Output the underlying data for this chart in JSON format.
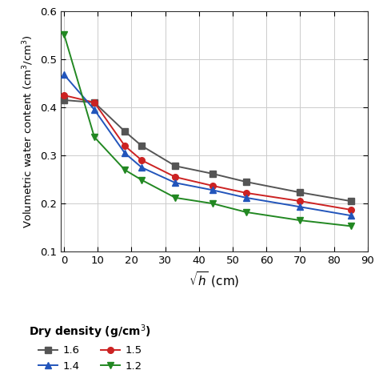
{
  "series": {
    "1.6": {
      "x": [
        0,
        9,
        18,
        23,
        33,
        44,
        54,
        70,
        85
      ],
      "y": [
        0.415,
        0.41,
        0.35,
        0.32,
        0.278,
        0.262,
        0.245,
        0.223,
        0.205
      ],
      "color": "#555555",
      "marker": "s",
      "label": "1.6"
    },
    "1.5": {
      "x": [
        0,
        9,
        18,
        23,
        33,
        44,
        54,
        70,
        85
      ],
      "y": [
        0.425,
        0.41,
        0.32,
        0.29,
        0.255,
        0.237,
        0.222,
        0.205,
        0.187
      ],
      "color": "#cc2222",
      "marker": "o",
      "label": "1.5"
    },
    "1.4": {
      "x": [
        0,
        9,
        18,
        23,
        33,
        44,
        54,
        70,
        85
      ],
      "y": [
        0.468,
        0.395,
        0.305,
        0.275,
        0.243,
        0.228,
        0.212,
        0.193,
        0.175
      ],
      "color": "#2255bb",
      "marker": "^",
      "label": "1.4"
    },
    "1.2": {
      "x": [
        0,
        9,
        18,
        23,
        33,
        44,
        54,
        70,
        85
      ],
      "y": [
        0.552,
        0.338,
        0.27,
        0.249,
        0.212,
        0.2,
        0.182,
        0.165,
        0.153
      ],
      "color": "#228822",
      "marker": "v",
      "label": "1.2"
    }
  },
  "xlim": [
    -1,
    90
  ],
  "ylim": [
    0.1,
    0.6
  ],
  "xticks": [
    0,
    10,
    20,
    30,
    40,
    50,
    60,
    70,
    80,
    90
  ],
  "yticks": [
    0.1,
    0.2,
    0.3,
    0.4,
    0.5,
    0.6
  ],
  "xlabel": "$\\sqrt{h}$ (cm)",
  "ylabel": "Volumetric water content (cm$^3$/cm$^3$)",
  "legend_title": "Dry density (g/cm$^3$)",
  "background_color": "#ffffff",
  "grid_color": "#cccccc"
}
